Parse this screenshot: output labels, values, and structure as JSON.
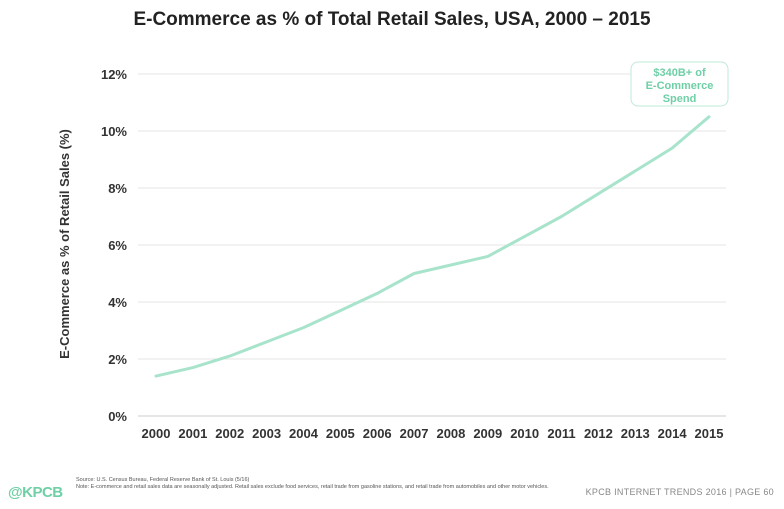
{
  "title": "E-Commerce as % of Total Retail Sales, USA, 2000 – 2015",
  "chart_data": {
    "type": "line",
    "title": "E-Commerce as % of Total Retail Sales, USA, 2000 – 2015",
    "xlabel": "",
    "ylabel": "E-Commerce as % of Retail Sales (%)",
    "x": [
      "2000",
      "2001",
      "2002",
      "2003",
      "2004",
      "2005",
      "2006",
      "2007",
      "2008",
      "2009",
      "2010",
      "2011",
      "2012",
      "2013",
      "2014",
      "2015"
    ],
    "series": [
      {
        "values": [
          1.4,
          1.7,
          2.1,
          2.6,
          3.1,
          3.7,
          4.3,
          5.0,
          5.3,
          5.6,
          6.3,
          7.0,
          7.8,
          8.6,
          9.4,
          10.5
        ]
      }
    ],
    "ylim": [
      0,
      12
    ],
    "yticks": [
      0,
      2,
      4,
      6,
      8,
      10,
      12
    ],
    "ytick_labels": [
      "0%",
      "2%",
      "4%",
      "6%",
      "8%",
      "10%",
      "12%"
    ],
    "grid": "horizontal",
    "line_color": "#a8e3cc",
    "annotation": {
      "lines": [
        "$340B+ of",
        "E-Commerce",
        "Spend"
      ],
      "x": "2015",
      "y": 12,
      "color": "#6fcfa6"
    }
  },
  "footer": {
    "source_line1": "Source: U.S. Census Bureau, Federal Reserve Bank of St. Louis (5/16)",
    "source_line2": "Note: E-commerce and retail sales data are seasonally adjusted. Retail sales exclude food services, retail trade from gasoline stations, and retail trade from automobiles and other motor vehicles.",
    "logo": "@KPCB",
    "right": "KPCB INTERNET TRENDS 2016  |  PAGE 60"
  },
  "colors": {
    "accent": "#6fcfa6",
    "grid": "#e6e6e6",
    "text": "#333333"
  }
}
